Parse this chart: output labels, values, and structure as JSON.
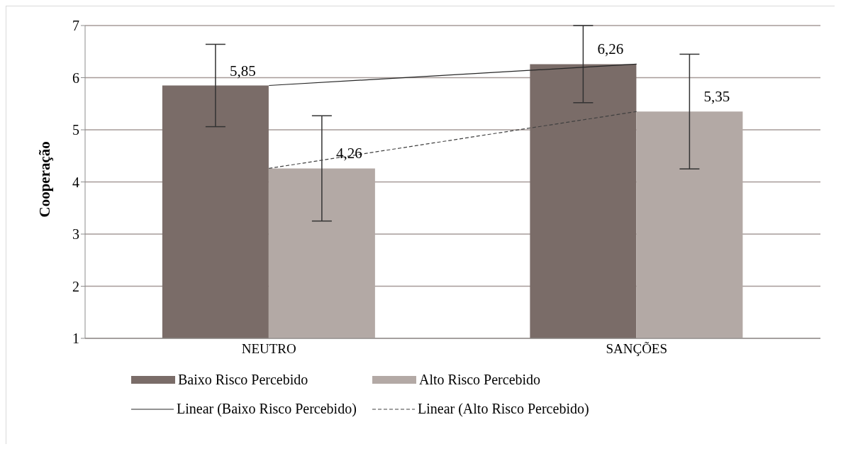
{
  "chart_data": {
    "type": "bar",
    "ylabel": "Cooperação",
    "categories": [
      "NEUTRO",
      "SANÇÕES"
    ],
    "series": [
      {
        "name": "Baixo Risco Percebido",
        "color": "#7a6c68",
        "values": [
          5.85,
          6.26
        ],
        "errors": [
          0.79,
          0.74
        ],
        "value_labels": [
          "5,85",
          "6,26"
        ]
      },
      {
        "name": "Alto Risco Percebido",
        "color": "#b3a9a5",
        "values": [
          4.26,
          5.35
        ],
        "errors": [
          1.01,
          1.1
        ],
        "value_labels": [
          "4,26",
          "5,35"
        ]
      },
      {
        "name": "Linear (Baixo Risco Percebido)",
        "type": "line",
        "color": "#262626",
        "line_style": "solid",
        "x": [
          "NEUTRO",
          "SANÇÕES"
        ],
        "values": [
          5.85,
          6.26
        ]
      },
      {
        "name": "Linear (Alto Risco Percebido)",
        "type": "line",
        "color": "#404040",
        "line_style": "dashed",
        "x": [
          "NEUTRO",
          "SANÇÕES"
        ],
        "values": [
          4.26,
          5.35
        ]
      }
    ],
    "ylim": [
      1,
      7
    ],
    "yticks": [
      1,
      2,
      3,
      4,
      5,
      6,
      7
    ],
    "grid": "y",
    "legend": "bottom"
  }
}
